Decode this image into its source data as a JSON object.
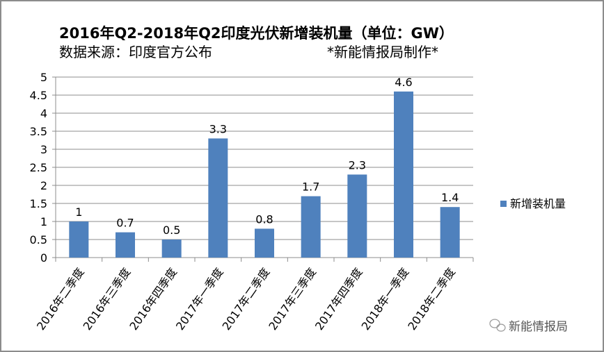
{
  "chart_data": {
    "type": "bar",
    "title": "2016年Q2-2018年Q2印度光伏新增装机量（单位：GW）",
    "subtitle_left": "数据来源：印度官方公布",
    "subtitle_right": "*新能情报局制作*",
    "categories": [
      "2016年二季度",
      "2016年三季度",
      "2016年四季度",
      "2017年一季度",
      "2017年二季度",
      "2017年三季度",
      "2017年四季度",
      "2018年一季度",
      "2018年二季度"
    ],
    "series": [
      {
        "name": "新增装机量",
        "values": [
          1,
          0.7,
          0.5,
          3.3,
          0.8,
          1.7,
          2.3,
          4.6,
          1.4
        ],
        "color": "#4F81BD"
      }
    ],
    "data_labels": [
      "1",
      "0.7",
      "0.5",
      "3.3",
      "0.8",
      "1.7",
      "2.3",
      "4.6",
      "1.4"
    ],
    "yticks": [
      "0",
      "0.5",
      "1",
      "1.5",
      "2",
      "2.5",
      "3",
      "3.5",
      "4",
      "4.5",
      "5"
    ],
    "ylim": [
      0,
      5
    ],
    "grid": true,
    "legend": "right",
    "xlabel": "",
    "ylabel": ""
  },
  "watermark": "新能情报局"
}
